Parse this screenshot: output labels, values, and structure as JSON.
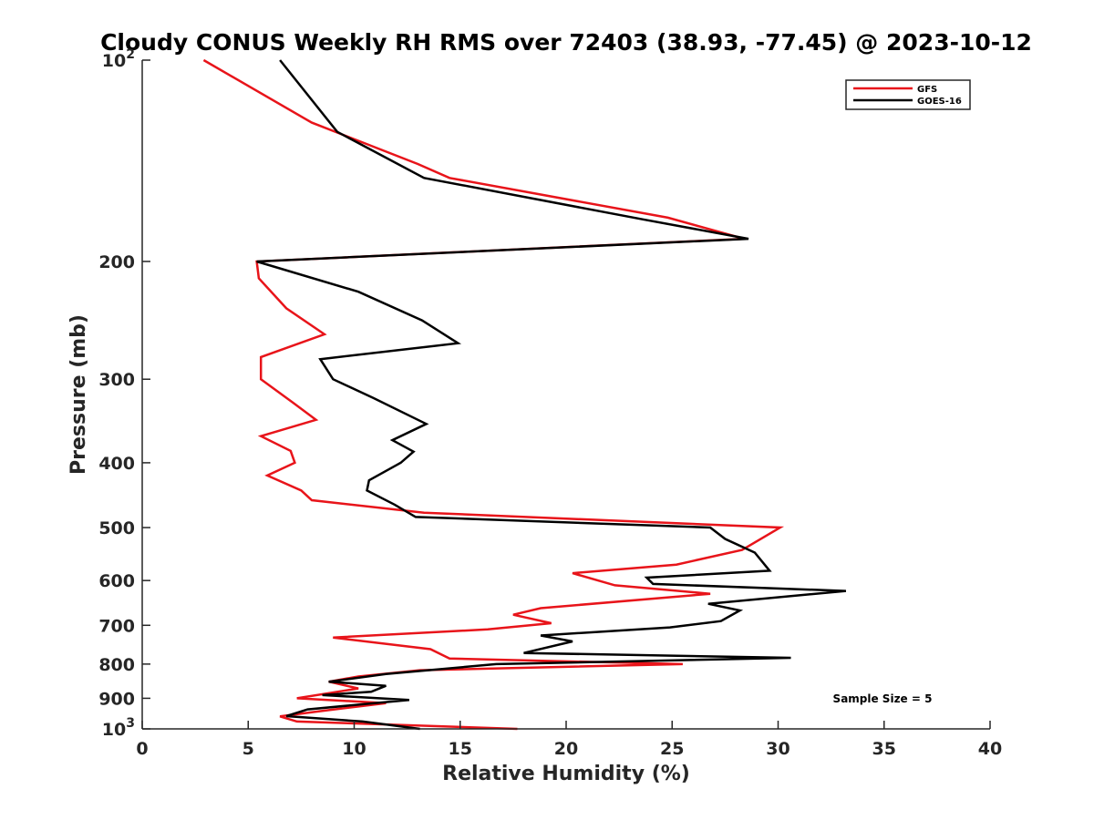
{
  "chart_data": {
    "type": "line",
    "title": "Cloudy CONUS Weekly RH RMS over 72403 (38.93, -77.45) @ 2023-10-12",
    "xlabel": "Relative Humidity (%)",
    "ylabel": "Pressure (mb)",
    "xlim": [
      0,
      40
    ],
    "ylim": [
      100,
      1000
    ],
    "yscale": "log",
    "yreversed": true,
    "grid": false,
    "legend_position": "top-right",
    "annotation": "Sample Size = 5",
    "xticks": [
      0,
      5,
      10,
      15,
      20,
      25,
      30,
      35,
      40
    ],
    "xtick_labels": [
      "0",
      "5",
      "10",
      "15",
      "20",
      "25",
      "30",
      "35",
      "40"
    ],
    "yticks": [
      100,
      200,
      300,
      400,
      500,
      600,
      700,
      800,
      900,
      1000
    ],
    "ytick_labels": [
      {
        "base": "10",
        "exp": "2"
      },
      {
        "base": "200",
        "exp": ""
      },
      {
        "base": "300",
        "exp": ""
      },
      {
        "base": "400",
        "exp": ""
      },
      {
        "base": "500",
        "exp": ""
      },
      {
        "base": "600",
        "exp": ""
      },
      {
        "base": "700",
        "exp": ""
      },
      {
        "base": "800",
        "exp": ""
      },
      {
        "base": "900",
        "exp": ""
      },
      {
        "base": "10",
        "exp": "3"
      }
    ],
    "series": [
      {
        "name": "GFS",
        "color": "#e8141a",
        "points": [
          [
            2.9,
            100
          ],
          [
            8.0,
            124
          ],
          [
            13.0,
            143
          ],
          [
            14.5,
            150
          ],
          [
            24.8,
            172
          ],
          [
            28.4,
            185
          ],
          [
            5.4,
            200
          ],
          [
            5.5,
            212
          ],
          [
            6.8,
            235
          ],
          [
            8.6,
            257
          ],
          [
            5.6,
            278
          ],
          [
            5.6,
            300
          ],
          [
            7.1,
            325
          ],
          [
            8.2,
            345
          ],
          [
            5.6,
            365
          ],
          [
            7.0,
            384
          ],
          [
            7.2,
            400
          ],
          [
            5.9,
            418
          ],
          [
            7.5,
            440
          ],
          [
            8.0,
            455
          ],
          [
            13.3,
            475
          ],
          [
            30.1,
            500
          ],
          [
            28.3,
            540
          ],
          [
            25.2,
            568
          ],
          [
            20.3,
            585
          ],
          [
            22.3,
            610
          ],
          [
            26.8,
            628
          ],
          [
            18.8,
            660
          ],
          [
            17.5,
            675
          ],
          [
            19.3,
            695
          ],
          [
            16.3,
            710
          ],
          [
            9.0,
            730
          ],
          [
            13.6,
            760
          ],
          [
            14.5,
            785
          ],
          [
            25.5,
            800
          ],
          [
            13.1,
            817
          ],
          [
            10.2,
            835
          ],
          [
            8.8,
            850
          ],
          [
            10.2,
            870
          ],
          [
            7.3,
            900
          ],
          [
            11.5,
            915
          ],
          [
            8.5,
            940
          ],
          [
            6.5,
            958
          ],
          [
            7.3,
            975
          ],
          [
            17.7,
            1000
          ]
        ]
      },
      {
        "name": "GOES-16",
        "color": "#000000",
        "points": [
          [
            6.5,
            100
          ],
          [
            9.2,
            128
          ],
          [
            13.3,
            150
          ],
          [
            23.6,
            173
          ],
          [
            28.6,
            185
          ],
          [
            5.4,
            200
          ],
          [
            10.2,
            222
          ],
          [
            13.2,
            245
          ],
          [
            14.9,
            265
          ],
          [
            8.4,
            280
          ],
          [
            9.0,
            300
          ],
          [
            10.9,
            320
          ],
          [
            13.4,
            350
          ],
          [
            11.8,
            370
          ],
          [
            12.8,
            385
          ],
          [
            12.2,
            400
          ],
          [
            10.7,
            425
          ],
          [
            10.6,
            440
          ],
          [
            11.9,
            462
          ],
          [
            12.9,
            482
          ],
          [
            26.8,
            500
          ],
          [
            27.5,
            520
          ],
          [
            28.9,
            545
          ],
          [
            29.6,
            580
          ],
          [
            23.8,
            594
          ],
          [
            24.1,
            607
          ],
          [
            33.2,
            622
          ],
          [
            26.7,
            650
          ],
          [
            28.2,
            665
          ],
          [
            27.3,
            690
          ],
          [
            24.9,
            705
          ],
          [
            18.8,
            725
          ],
          [
            20.3,
            740
          ],
          [
            18.0,
            770
          ],
          [
            30.6,
            783
          ],
          [
            16.7,
            800
          ],
          [
            11.5,
            828
          ],
          [
            8.8,
            850
          ],
          [
            11.5,
            862
          ],
          [
            10.8,
            880
          ],
          [
            8.5,
            890
          ],
          [
            12.6,
            905
          ],
          [
            7.8,
            935
          ],
          [
            6.8,
            957
          ],
          [
            10.4,
            975
          ],
          [
            13.1,
            1000
          ]
        ]
      }
    ]
  }
}
